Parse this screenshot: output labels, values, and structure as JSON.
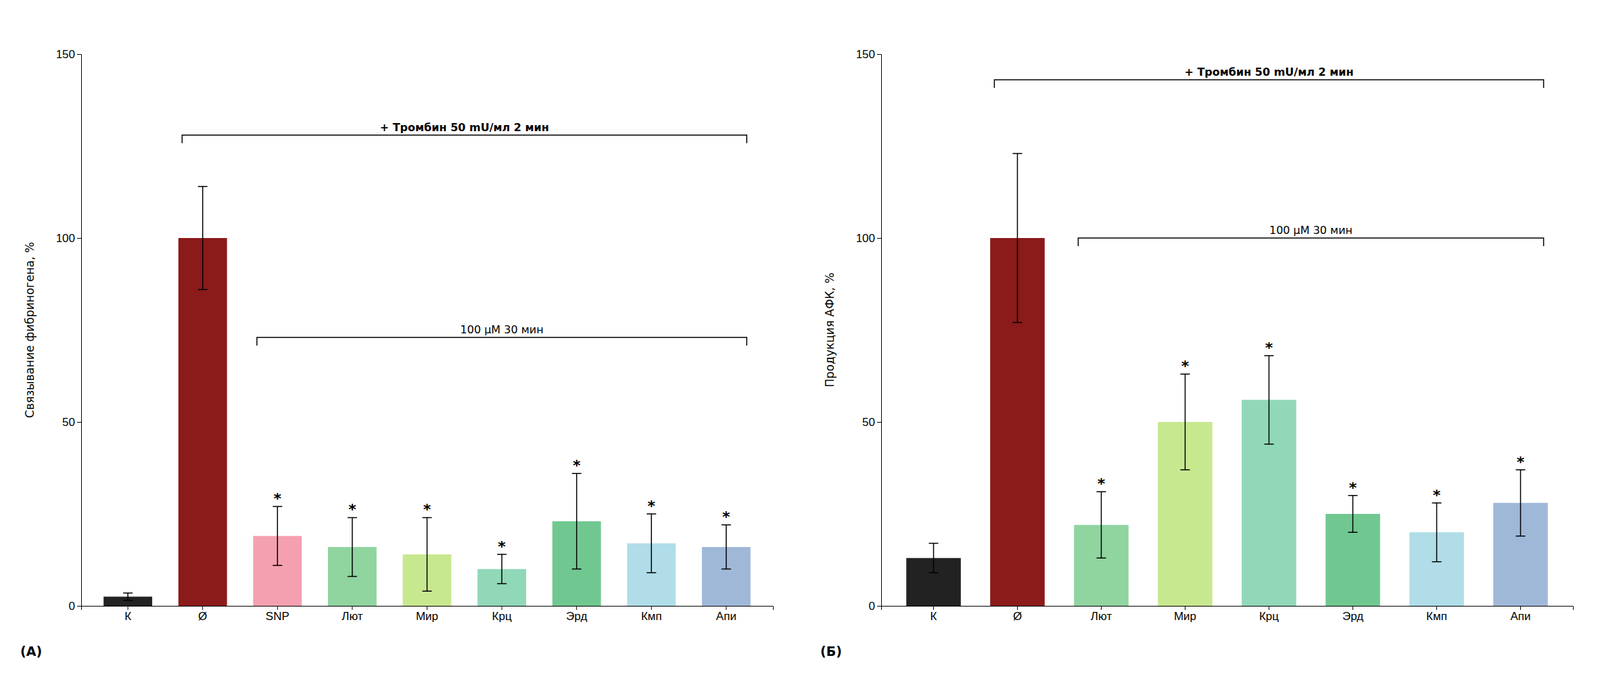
{
  "chart_data": [
    {
      "type": "bar",
      "title": "(А)",
      "categories": [
        "К",
        "Ø",
        "SNP",
        "Лют",
        "Мир",
        "Крц",
        "Эрд",
        "Кмп",
        "Апи"
      ],
      "values": [
        2.5,
        100,
        19,
        16,
        14,
        10,
        23,
        17,
        16
      ],
      "errors": [
        1.0,
        14,
        8,
        8,
        10,
        4,
        13,
        8,
        6
      ],
      "colors": [
        "#222222",
        "#8B1A1A",
        "#F4A0B0",
        "#90D4A0",
        "#C8E890",
        "#90D8B8",
        "#70C890",
        "#B0DDE8",
        "#A0B8D8"
      ],
      "significance": [
        null,
        null,
        "*",
        "*",
        "*",
        "*",
        "*",
        "*",
        "*"
      ],
      "ylabel": "Связывание фибриногена, %",
      "ylim": [
        0,
        150
      ],
      "yticks": [
        0,
        50,
        100,
        150
      ],
      "grid": false,
      "annotations": [
        {
          "text": "+ Тромбин 50 mU/мл 2 мин",
          "y": 128,
          "start": 1,
          "end": 8
        },
        {
          "text": "100 μM 30 мин",
          "y": 73,
          "start": 2,
          "end": 8
        }
      ]
    },
    {
      "type": "bar",
      "title": "(Б)",
      "categories": [
        "К",
        "Ø",
        "Лют",
        "Мир",
        "Крц",
        "Эрд",
        "Кмп",
        "Апи"
      ],
      "values": [
        13,
        100,
        22,
        50,
        56,
        25,
        20,
        28
      ],
      "errors": [
        4,
        23,
        9,
        13,
        12,
        5,
        8,
        9
      ],
      "colors": [
        "#222222",
        "#8B1A1A",
        "#90D4A0",
        "#C8E890",
        "#90D8B8",
        "#70C890",
        "#B0DDE8",
        "#A0B8D8"
      ],
      "significance": [
        null,
        null,
        "*",
        "*",
        "*",
        "*",
        "*",
        "*"
      ],
      "ylabel": "Продукция АФК, %",
      "ylim": [
        0,
        150
      ],
      "yticks": [
        0,
        50,
        100,
        150
      ],
      "grid": false,
      "annotations": [
        {
          "text": "+ Тромбин 50 mU/мл 2 мин",
          "y": 143,
          "start": 1,
          "end": 7
        },
        {
          "text": "100 μM 30 мин",
          "y": 100,
          "start": 2,
          "end": 7
        }
      ]
    }
  ]
}
